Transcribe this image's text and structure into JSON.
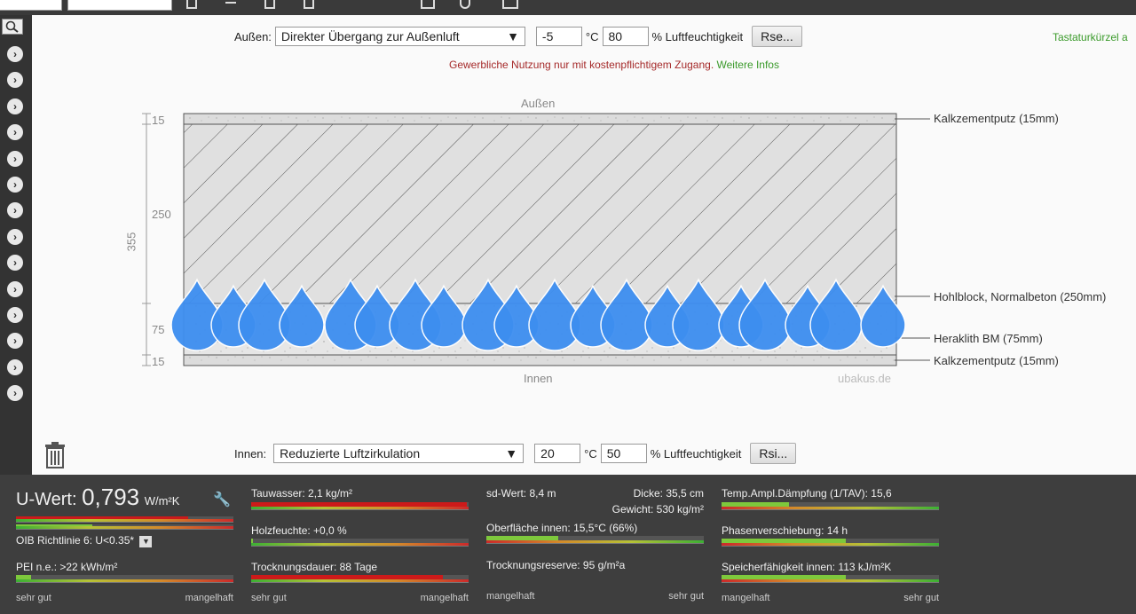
{
  "outside": {
    "label": "Außen:",
    "condition": "Direkter Übergang zur Außenluft",
    "temp": "-5",
    "temp_unit": "°C",
    "humidity": "80",
    "humidity_unit": "% Luftfeuchtigkeit",
    "button": "Rse..."
  },
  "inside": {
    "label": "Innen:",
    "condition": "Reduzierte Luftzirkulation",
    "temp": "20",
    "temp_unit": "°C",
    "humidity": "50",
    "humidity_unit": "% Luftfeuchtigkeit",
    "button": "Rsi..."
  },
  "notice": {
    "text": "Gewerbliche Nutzung nur mit kostenpflichtigem Zugang.",
    "link": "Weitere Infos"
  },
  "shortcut": "Tastaturkürzel a",
  "diagram": {
    "top_label": "Außen",
    "bottom_label": "Innen",
    "watermark": "ubakus.de",
    "total": "355",
    "dims": [
      "15",
      "250",
      "75",
      "15"
    ],
    "layers": [
      "Kalkzementputz (15mm)",
      "Hohlblock, Normalbeton (250mm)",
      "Heraklith BM (75mm)",
      "Kalkzementputz (15mm)"
    ]
  },
  "results": {
    "uwert_label": "U-Wert:",
    "uwert_value": "0,793",
    "uwert_unit": "W/m²K",
    "oib": "OIB Richtlinie 6: U<0.35*",
    "pei": "PEI n.e.: >22 kWh/m²",
    "tauwasser": "Tauwasser: 2,1 kg/m²",
    "holzfeuchte": "Holzfeuchte: +0,0 %",
    "trocknung": "Trocknungsdauer: 88 Tage",
    "sdwert": "sd-Wert: 8,4 m",
    "dicke": "Dicke: 35,5 cm",
    "gewicht": "Gewicht: 530 kg/m²",
    "oberflaeche": "Oberfläche innen: 15,5°C (66%)",
    "reserve": "Trocknungsreserve: 95 g/m²a",
    "tav": "Temp.Ampl.Dämpfung (1/TAV): 15,6",
    "phase": "Phasenverschiebung: 14 h",
    "speicher": "Speicherfähigkeit innen: 113 kJ/m²K",
    "good": "sehr gut",
    "bad": "mangelhaft"
  },
  "levels": {
    "uwert": 0.79,
    "uwert2": 0.35,
    "pei": 0.07,
    "tauwasser": 0.99,
    "holzfeuchte": 0.01,
    "trocknung": 0.88,
    "oberflaeche": 0.33,
    "tav": 0.31,
    "phase": 0.57,
    "speicher": 0.57
  },
  "colors": {
    "red": "#cc1a1a",
    "green": "#7ec83c",
    "drop": "#3d8ef0"
  }
}
